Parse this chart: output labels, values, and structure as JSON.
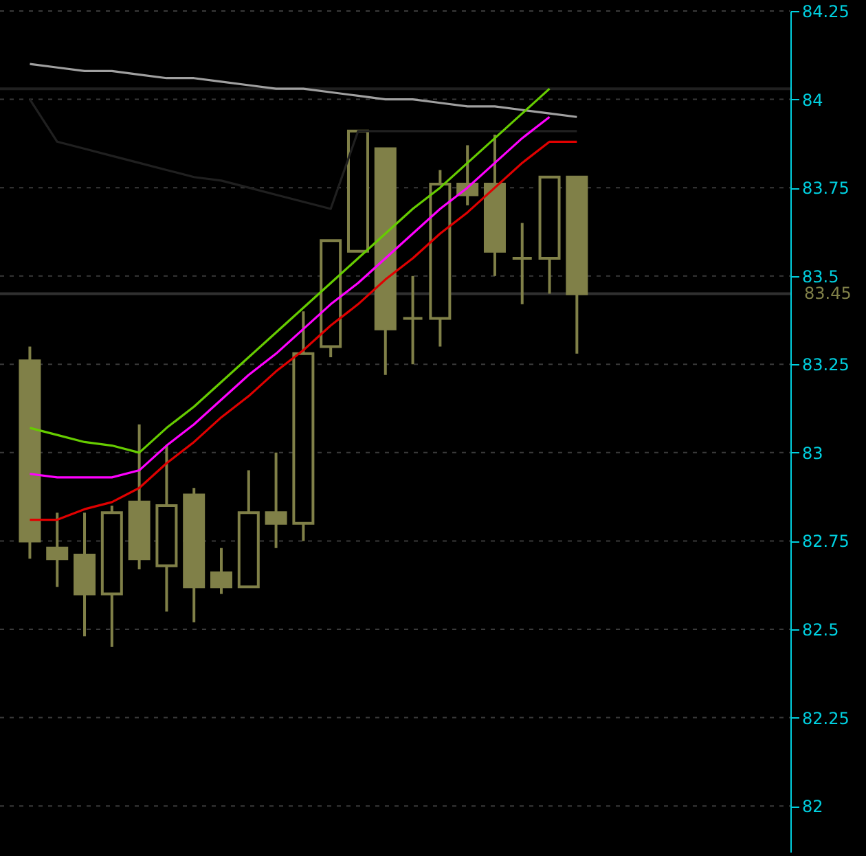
{
  "chart_data": {
    "type": "candlestick",
    "categories": [
      null,
      null,
      null,
      null,
      null,
      null,
      null,
      null,
      null,
      null,
      null,
      null,
      null,
      null,
      null,
      null,
      null,
      null,
      null,
      null,
      null
    ],
    "color": "#808048",
    "ohlc": [
      [
        83.26,
        83.3,
        82.7,
        82.75
      ],
      [
        82.73,
        82.83,
        82.62,
        82.7
      ],
      [
        82.71,
        82.83,
        82.48,
        82.6
      ],
      [
        82.6,
        82.85,
        82.45,
        82.83
      ],
      [
        82.86,
        83.08,
        82.67,
        82.7
      ],
      [
        82.68,
        83.02,
        82.55,
        82.85
      ],
      [
        82.88,
        82.9,
        82.52,
        82.62
      ],
      [
        82.66,
        82.73,
        82.6,
        82.62
      ],
      [
        82.62,
        82.95,
        82.62,
        82.83
      ],
      [
        82.83,
        83.0,
        82.73,
        82.8
      ],
      [
        82.8,
        83.4,
        82.75,
        83.28
      ],
      [
        83.3,
        83.6,
        83.27,
        83.6
      ],
      [
        83.57,
        83.91,
        83.57,
        83.91
      ],
      [
        83.86,
        83.86,
        83.22,
        83.35
      ],
      [
        83.38,
        83.5,
        83.25,
        83.38
      ],
      [
        83.38,
        83.8,
        83.3,
        83.76
      ],
      [
        83.76,
        83.87,
        83.7,
        83.73
      ],
      [
        83.76,
        83.9,
        83.5,
        83.57
      ],
      [
        83.55,
        83.65,
        83.42,
        83.55
      ],
      [
        83.55,
        83.78,
        83.45,
        83.78
      ],
      [
        83.78,
        83.78,
        83.28,
        83.45
      ]
    ],
    "series": [
      {
        "type": "line",
        "color": "#a0a0a0",
        "values": [
          84.1,
          84.09,
          84.08,
          84.08,
          84.07,
          84.06,
          84.06,
          84.05,
          84.04,
          84.03,
          84.03,
          84.02,
          84.01,
          84.0,
          84.0,
          83.99,
          83.98,
          83.98,
          83.97,
          83.96,
          83.95
        ]
      },
      {
        "type": "line",
        "color": "#202020",
        "values": [
          84.0,
          83.88,
          83.86,
          83.84,
          83.82,
          83.8,
          83.78,
          83.77,
          83.75,
          83.73,
          83.71,
          83.69,
          83.91,
          83.91,
          83.91,
          83.91,
          83.91,
          83.91,
          83.91,
          83.91,
          83.91
        ]
      },
      {
        "type": "line",
        "color": "#66cc00",
        "values": [
          83.07,
          83.05,
          83.03,
          83.02,
          83.0,
          83.07,
          83.13,
          83.2,
          83.27,
          83.34,
          83.41,
          83.48,
          83.55,
          83.62,
          83.69,
          83.75,
          83.82,
          83.89,
          83.96,
          84.03,
          null
        ]
      },
      {
        "type": "line",
        "color": "#ff00ff",
        "values": [
          82.94,
          82.93,
          82.93,
          82.93,
          82.95,
          83.02,
          83.08,
          83.15,
          83.22,
          83.28,
          83.35,
          83.42,
          83.48,
          83.55,
          83.62,
          83.69,
          83.75,
          83.82,
          83.89,
          83.95,
          null
        ]
      },
      {
        "type": "line",
        "color": "#e00000",
        "values": [
          82.81,
          82.81,
          82.84,
          82.86,
          82.9,
          82.97,
          83.03,
          83.1,
          83.16,
          83.23,
          83.29,
          83.36,
          83.42,
          83.49,
          83.55,
          83.62,
          83.68,
          83.75,
          83.82,
          83.88,
          83.88
        ]
      }
    ],
    "ref_lines": [
      {
        "axis": "y",
        "value": 84.03,
        "color": "#202020"
      },
      {
        "axis": "y",
        "value": 83.45,
        "label": "83.45",
        "color": "#303030"
      }
    ],
    "ylim": [
      81.87,
      84.25
    ],
    "yticks": [
      82,
      82.25,
      82.5,
      82.75,
      83,
      83.25,
      83.5,
      83.75,
      84,
      84.25
    ],
    "grid": "y",
    "line_style": "solid",
    "marker": "none"
  }
}
